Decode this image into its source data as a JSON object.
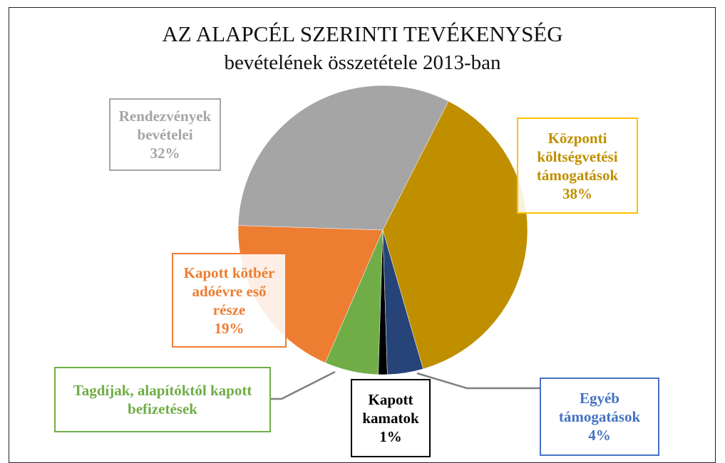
{
  "chart_data": {
    "type": "pie",
    "title": "AZ ALAPCÉL SZERINTI TEVÉKENYSÉG",
    "subtitle": "bevételének összetétele 2013-ban",
    "categories": [
      "Központi költségvetési támogatások",
      "Egyéb támogatások",
      "Kapott kamatok",
      "Tagdíjak, alapítóktól kapott befizetések",
      "Kapott kötbér adóévre eső része",
      "Rendezvények bevételei"
    ],
    "values": [
      38,
      4,
      1,
      6,
      19,
      32
    ],
    "value_labels": [
      "38%",
      "4%",
      "1%",
      null,
      "19%",
      "32%"
    ],
    "colors": [
      "#bf8f00",
      "#264478",
      "#000000",
      "#70ad47",
      "#ed7d31",
      "#a5a5a5"
    ],
    "label_colors": [
      "#bf8f00",
      "#4472c4",
      "#000000",
      "#70ad47",
      "#ed7d31",
      "#a5a5a5"
    ],
    "border_colors": [
      "#ffc000",
      "#4472c4",
      "#000000",
      "#70ad47",
      "#ed7d31",
      "#a5a5a5"
    ]
  }
}
